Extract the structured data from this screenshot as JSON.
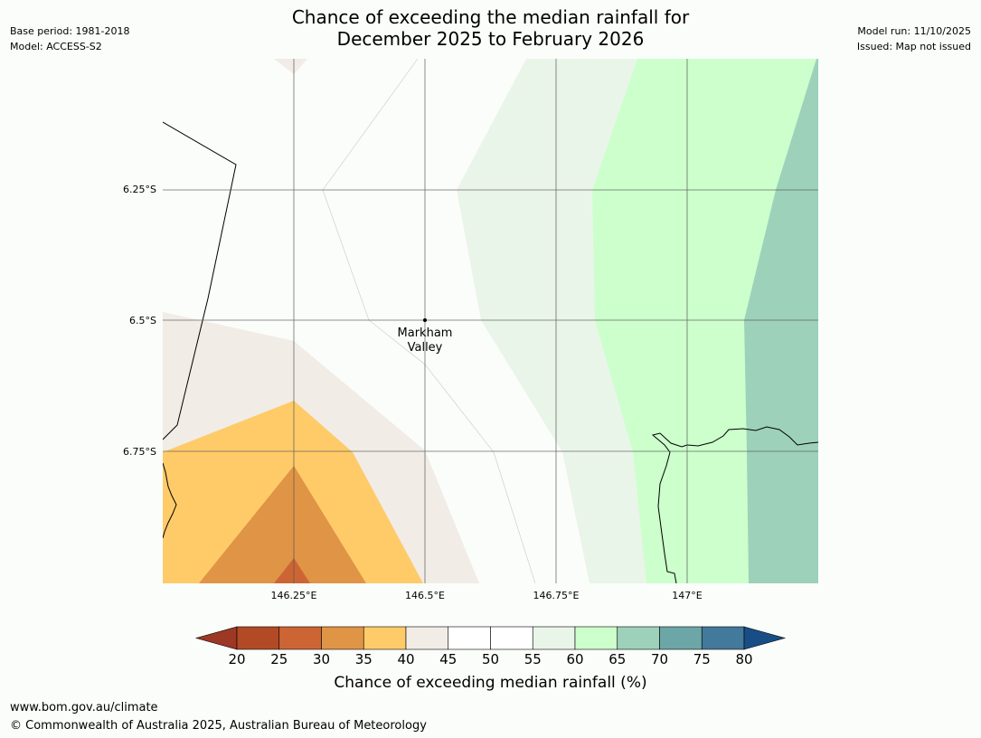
{
  "title_line1": "Chance of exceeding the median rainfall for",
  "title_line2": "December 2025 to February 2026",
  "meta_left": {
    "base_period": "Base period: 1981-2018",
    "model": "Model: ACCESS-S2"
  },
  "meta_right": {
    "model_run": "Model run: 11/10/2025",
    "issued": "Issued: Map not issued"
  },
  "map": {
    "lat_labels": [
      "6.25°S",
      "6.5°S",
      "6.75°S"
    ],
    "lon_labels": [
      "146.25°E",
      "146.5°E",
      "146.75°E",
      "147°E"
    ],
    "place": {
      "name_line1": "Markham",
      "name_line2": "Valley"
    }
  },
  "colorbar": {
    "ticks": [
      "20",
      "25",
      "30",
      "35",
      "40",
      "45",
      "50",
      "55",
      "60",
      "65",
      "70",
      "75",
      "80"
    ],
    "colors": {
      "below20": "#9c3823",
      "c20": "#b24a26",
      "c25": "#cc6533",
      "c30": "#e09446",
      "c35": "#ffcb69",
      "c40": "#f1ece6",
      "c45": "#ffffff",
      "c50": "#ffffff",
      "c55": "#eaf5ea",
      "c60": "#ccffcc",
      "c65": "#9dd1ba",
      "c70": "#6ca6a7",
      "c75": "#43799a",
      "above80": "#184e85"
    },
    "label": "Chance of exceeding median rainfall (%)"
  },
  "footer": {
    "url": "www.bom.gov.au/climate",
    "copyright": "© Commonwealth of Australia 2025, Australian Bureau of Meteorology"
  }
}
